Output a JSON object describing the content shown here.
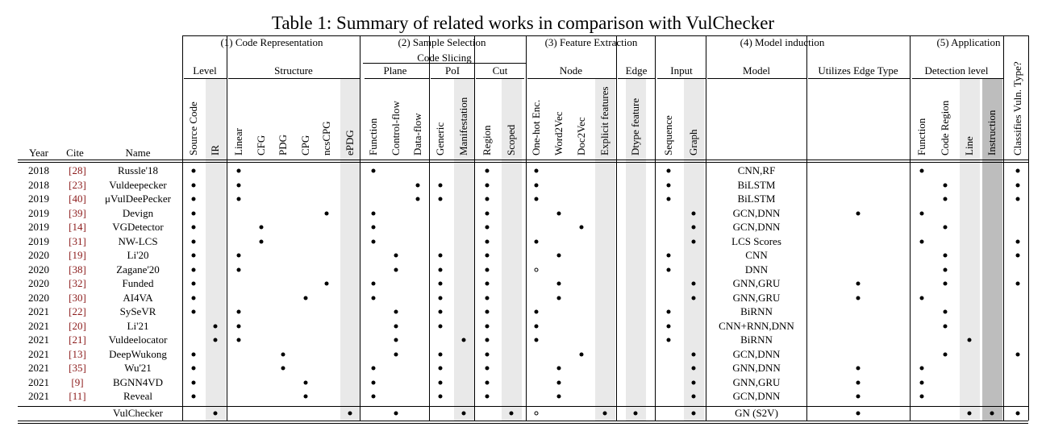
{
  "title": "Table 1: Summary of related works in comparison with VulChecker",
  "groups": [
    "(1) Code Representation",
    "(2) Sample Selection",
    "(3) Feature Extraction",
    "(4) Model induction",
    "(5) Application"
  ],
  "subgroup": "Code Slicing",
  "subheaders": [
    "Level",
    "Structure",
    "Plane",
    "PoI",
    "Cut",
    "Node",
    "Edge",
    "Input",
    "Model",
    "Utilizes Edge Type",
    "Detection level"
  ],
  "row_headers": [
    "Year",
    "Cite",
    "Name"
  ],
  "columns": [
    "Source Code",
    "IR",
    "Linear",
    "CFG",
    "PDG",
    "CPG",
    "ncsCPG",
    "ePDG",
    "Function",
    "Control-flow",
    "Data-flow",
    "Generic",
    "Manifestation",
    "Region",
    "Scoped",
    "One-hot Enc.",
    "Word2Vec",
    "Doc2Vec",
    "Explicit features",
    "Dtype feature",
    "Sequence",
    "Graph",
    "Function",
    "Code Region",
    "Line",
    "Instruction",
    "Classifies Vuln. Type?"
  ],
  "rows": [
    {
      "year": "2018",
      "cite": "[28]",
      "name": "Russle'18",
      "model": "CNN,RF",
      "marks": [
        "●",
        "",
        "●",
        "",
        "",
        "",
        "",
        "",
        "●",
        "",
        "",
        "",
        "",
        "●",
        "",
        "●",
        "",
        "",
        "",
        "",
        "●",
        "",
        "●",
        "",
        "",
        "",
        "●"
      ]
    },
    {
      "year": "2018",
      "cite": "[23]",
      "name": "Vuldeepecker",
      "model": "BiLSTM",
      "marks": [
        "●",
        "",
        "●",
        "",
        "",
        "",
        "",
        "",
        "",
        "",
        "●",
        "●",
        "",
        "●",
        "",
        "●",
        "",
        "",
        "",
        "",
        "●",
        "",
        "",
        "●",
        "",
        "",
        "●"
      ]
    },
    {
      "year": "2019",
      "cite": "[40]",
      "name": "μVulDeePecker",
      "model": "BiLSTM",
      "marks": [
        "●",
        "",
        "●",
        "",
        "",
        "",
        "",
        "",
        "",
        "",
        "●",
        "●",
        "",
        "●",
        "",
        "●",
        "",
        "",
        "",
        "",
        "●",
        "",
        "",
        "●",
        "",
        "",
        "●"
      ]
    },
    {
      "year": "2019",
      "cite": "[39]",
      "name": "Devign",
      "model": "GCN,DNN",
      "edge_type": "●",
      "marks": [
        "●",
        "",
        "",
        "",
        "",
        "",
        "●",
        "",
        "●",
        "",
        "",
        "",
        "",
        "●",
        "",
        "",
        "●",
        "",
        "",
        "",
        "",
        "●",
        "●",
        "",
        "",
        "",
        ""
      ]
    },
    {
      "year": "2019",
      "cite": "[14]",
      "name": "VGDetector",
      "model": "GCN,DNN",
      "marks": [
        "●",
        "",
        "",
        "●",
        "",
        "",
        "",
        "",
        "●",
        "",
        "",
        "",
        "",
        "●",
        "",
        "",
        "",
        "●",
        "",
        "",
        "",
        "●",
        "",
        "●",
        "",
        "",
        ""
      ]
    },
    {
      "year": "2019",
      "cite": "[31]",
      "name": "NW-LCS",
      "model": "LCS Scores",
      "marks": [
        "●",
        "",
        "",
        "●",
        "",
        "",
        "",
        "",
        "●",
        "",
        "",
        "",
        "",
        "●",
        "",
        "●",
        "",
        "",
        "",
        "",
        "",
        "●",
        "●",
        "",
        "",
        "",
        "●"
      ]
    },
    {
      "year": "2020",
      "cite": "[19]",
      "name": "Li'20",
      "model": "CNN",
      "marks": [
        "●",
        "",
        "●",
        "",
        "",
        "",
        "",
        "",
        "",
        "●",
        "",
        "●",
        "",
        "●",
        "",
        "",
        "●",
        "",
        "",
        "",
        "●",
        "",
        "",
        "●",
        "",
        "",
        "●"
      ]
    },
    {
      "year": "2020",
      "cite": "[38]",
      "name": "Zagane'20",
      "model": "DNN",
      "marks": [
        "●",
        "",
        "●",
        "",
        "",
        "",
        "",
        "",
        "",
        "●",
        "",
        "●",
        "",
        "●",
        "",
        "○",
        "",
        "",
        "",
        "",
        "●",
        "",
        "",
        "●",
        "",
        "",
        ""
      ]
    },
    {
      "year": "2020",
      "cite": "[32]",
      "name": "Funded",
      "model": "GNN,GRU",
      "edge_type": "●",
      "marks": [
        "●",
        "",
        "",
        "",
        "",
        "",
        "●",
        "",
        "●",
        "",
        "",
        "●",
        "",
        "●",
        "",
        "",
        "●",
        "",
        "",
        "",
        "",
        "●",
        "",
        "●",
        "",
        "",
        "●"
      ]
    },
    {
      "year": "2020",
      "cite": "[30]",
      "name": "AI4VA",
      "model": "GNN,GRU",
      "edge_type": "●",
      "marks": [
        "●",
        "",
        "",
        "",
        "",
        "●",
        "",
        "",
        "●",
        "",
        "",
        "●",
        "",
        "●",
        "",
        "",
        "●",
        "",
        "",
        "",
        "",
        "●",
        "●",
        "",
        "",
        "",
        ""
      ]
    },
    {
      "year": "2021",
      "cite": "[22]",
      "name": "SySeVR",
      "model": "BiRNN",
      "marks": [
        "●",
        "",
        "●",
        "",
        "",
        "",
        "",
        "",
        "",
        "●",
        "",
        "●",
        "",
        "●",
        "",
        "●",
        "",
        "",
        "",
        "",
        "●",
        "",
        "",
        "●",
        "",
        "",
        ""
      ]
    },
    {
      "year": "2021",
      "cite": "[20]",
      "name": "Li'21",
      "model": "CNN+RNN,DNN",
      "marks": [
        "",
        "●",
        "●",
        "",
        "",
        "",
        "",
        "",
        "",
        "●",
        "",
        "●",
        "",
        "●",
        "",
        "●",
        "",
        "",
        "",
        "",
        "●",
        "",
        "",
        "●",
        "",
        "",
        ""
      ]
    },
    {
      "year": "2021",
      "cite": "[21]",
      "name": "Vuldeelocator",
      "model": "BiRNN",
      "marks": [
        "",
        "●",
        "●",
        "",
        "",
        "",
        "",
        "",
        "",
        "●",
        "",
        "",
        "●",
        "●",
        "",
        "●",
        "",
        "",
        "",
        "",
        "●",
        "",
        "",
        "",
        "●",
        "",
        ""
      ]
    },
    {
      "year": "2021",
      "cite": "[13]",
      "name": "DeepWukong",
      "model": "GCN,DNN",
      "marks": [
        "●",
        "",
        "",
        "",
        "●",
        "",
        "",
        "",
        "",
        "●",
        "",
        "●",
        "",
        "●",
        "",
        "",
        "",
        "●",
        "",
        "",
        "",
        "●",
        "",
        "●",
        "",
        "",
        "●"
      ]
    },
    {
      "year": "2021",
      "cite": "[35]",
      "name": "Wu'21",
      "model": "GNN,DNN",
      "edge_type": "●",
      "marks": [
        "●",
        "",
        "",
        "",
        "●",
        "",
        "",
        "",
        "●",
        "",
        "",
        "●",
        "",
        "●",
        "",
        "",
        "●",
        "",
        "",
        "",
        "",
        "●",
        "●",
        "",
        "",
        "",
        ""
      ]
    },
    {
      "year": "2021",
      "cite": "[9]",
      "name": "BGNN4VD",
      "model": "GNN,GRU",
      "edge_type": "●",
      "marks": [
        "●",
        "",
        "",
        "",
        "",
        "●",
        "",
        "",
        "●",
        "",
        "",
        "●",
        "",
        "●",
        "",
        "",
        "●",
        "",
        "",
        "",
        "",
        "●",
        "●",
        "",
        "",
        "",
        ""
      ]
    },
    {
      "year": "2021",
      "cite": "[11]",
      "name": "Reveal",
      "model": "GCN,DNN",
      "edge_type": "●",
      "marks": [
        "●",
        "",
        "",
        "",
        "",
        "●",
        "",
        "",
        "●",
        "",
        "",
        "●",
        "",
        "●",
        "",
        "",
        "●",
        "",
        "",
        "",
        "",
        "●",
        "●",
        "",
        "",
        "",
        ""
      ]
    }
  ],
  "vulchecker": {
    "name": "VulChecker",
    "model": "GN (S2V)",
    "edge_type": "●",
    "marks": [
      "",
      "●",
      "",
      "",
      "",
      "",
      "",
      "●",
      "",
      "●",
      "",
      "",
      "●",
      "",
      "●",
      "○",
      "",
      "",
      "●",
      "●",
      "",
      "●",
      "",
      "",
      "●",
      "●",
      "●"
    ]
  },
  "colors": {
    "shade_light": "#e9e9e9",
    "shade_dark": "#bdbdbd",
    "cite": "#8b1a1a"
  }
}
